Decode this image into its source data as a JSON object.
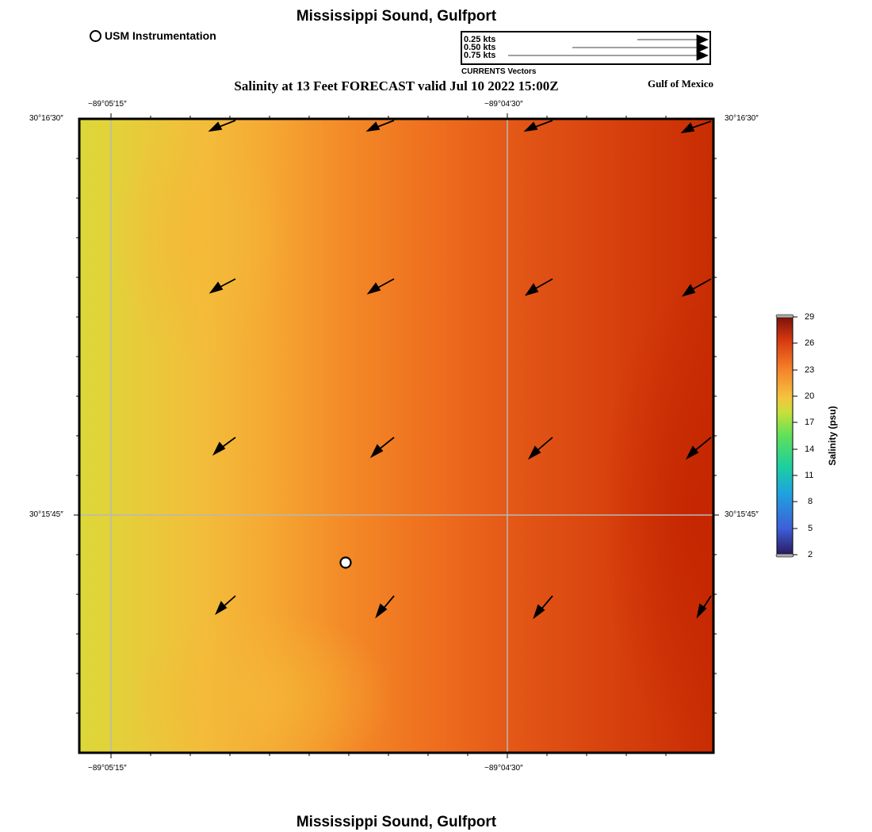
{
  "header": {
    "title": "Mississippi Sound, Gulfport",
    "subtitle": "Salinity at 13 Feet FORECAST valid Jul 10 2022 15:00Z",
    "region": "Gulf of Mexico",
    "station_legend": "USM Instrumentation"
  },
  "footer": {
    "title": "Mississippi Sound, Gulfport"
  },
  "vector_legend": {
    "entries": [
      {
        "label": "0.25 kts",
        "value": 0.25
      },
      {
        "label": "0.50 kts",
        "value": 0.5
      },
      {
        "label": "0.75 kts",
        "value": 0.75
      }
    ],
    "caption": "CURRENTS Vectors"
  },
  "axes": {
    "lon_ticks": [
      "−89°05′15″",
      "−89°04′30″"
    ],
    "lat_ticks": [
      "30°16′30″",
      "30°15′45″"
    ]
  },
  "colorbar": {
    "title": "Salinity (psu)",
    "ticks": [
      "29",
      "26",
      "23",
      "20",
      "17",
      "14",
      "11",
      "8",
      "5",
      "2"
    ],
    "min": 2,
    "max": 29,
    "colors": [
      "#2a1a5e",
      "#3d5fd8",
      "#1fa3e0",
      "#1ccfa0",
      "#5fe05a",
      "#c8e03a",
      "#f5c340",
      "#f5822a",
      "#d83a10",
      "#7a1208"
    ]
  },
  "colors": {
    "low_salinity": "#dcd838",
    "mid_salinity": "#f5b537",
    "high_salinity": "#f26a1b",
    "max_salinity": "#c42400"
  }
}
